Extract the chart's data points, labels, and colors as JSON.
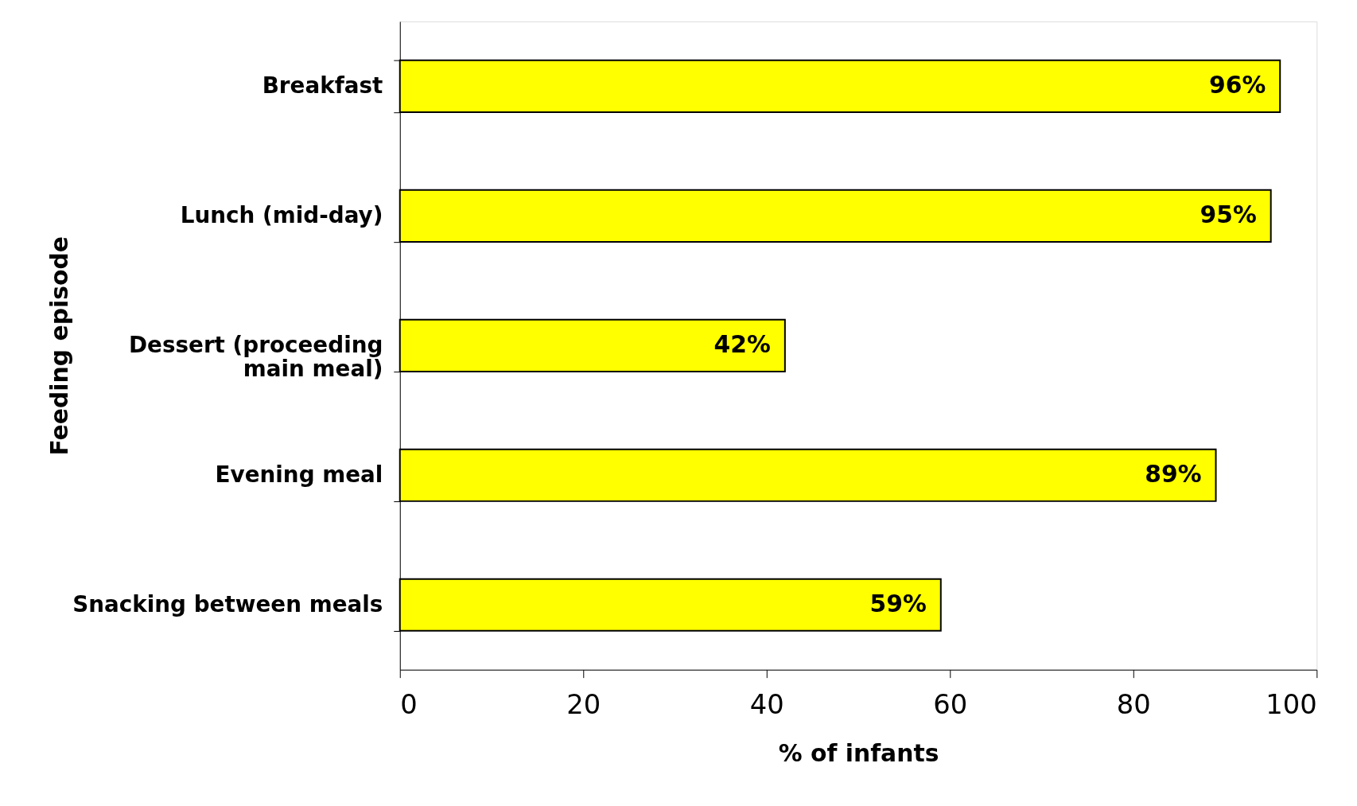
{
  "chart_data": {
    "type": "bar",
    "orientation": "horizontal",
    "categories": [
      "Breakfast",
      "Lunch (mid-day)",
      "Dessert (proceeding\nmain meal)",
      "Evening meal",
      "Snacking between meals"
    ],
    "values": [
      96,
      95,
      42,
      89,
      59
    ],
    "value_labels": [
      "96%",
      "95%",
      "42%",
      "89%",
      "59%"
    ],
    "color": "#ffff00",
    "xlabel": "% of infants",
    "ylabel": "Feeding episode",
    "xlim": [
      0,
      100
    ],
    "xticks": [
      0,
      20,
      40,
      60,
      80,
      100
    ],
    "grid": false
  }
}
